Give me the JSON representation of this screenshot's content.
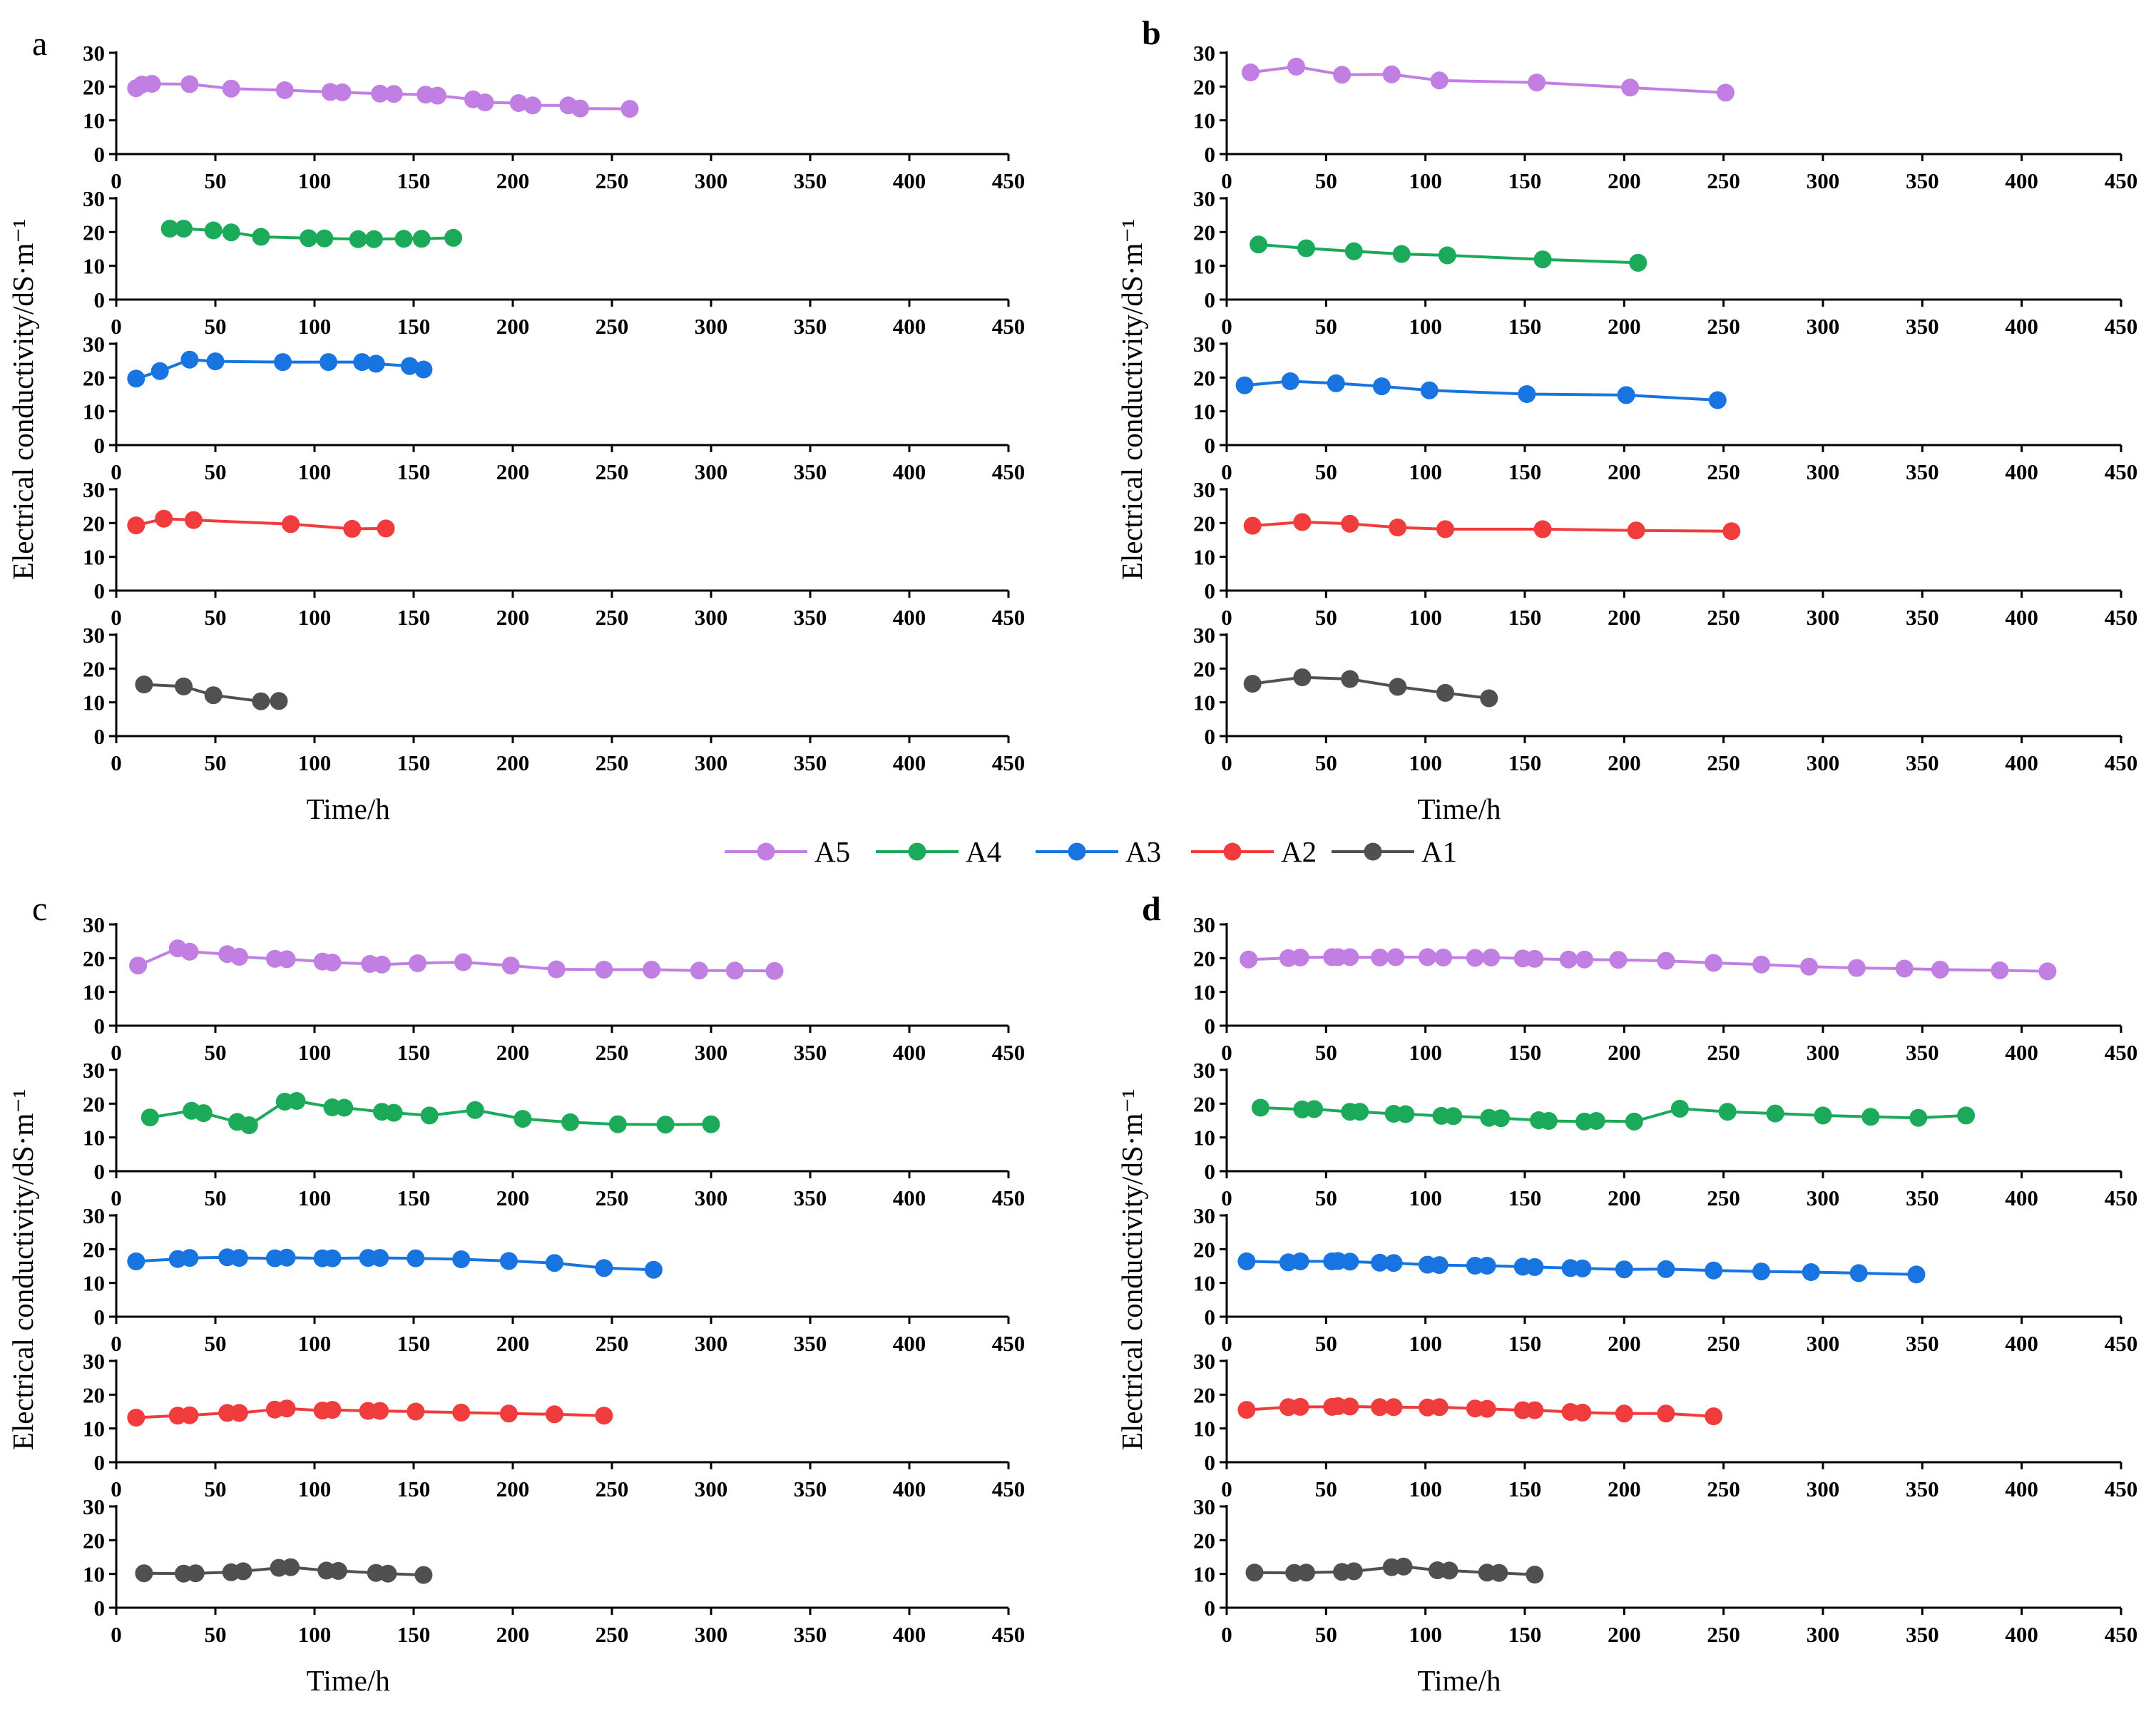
{
  "colors": {
    "A5": "#c27fe3",
    "A4": "#1aaa5a",
    "A3": "#1874e0",
    "A2": "#f03c3c",
    "A1": "#505050"
  },
  "legend": [
    "A5",
    "A4",
    "A3",
    "A2",
    "A1"
  ],
  "chart_data": [
    {
      "type": "line",
      "panel": "a",
      "xlabel": "Time/h",
      "ylabel": "Electrical conductivity/dS·m⁻¹",
      "xlim": [
        0,
        450
      ],
      "ylim": [
        0,
        30
      ],
      "xticks": [
        0,
        50,
        100,
        150,
        200,
        250,
        300,
        350,
        400,
        450
      ],
      "yticks": [
        0,
        10,
        20,
        30
      ],
      "series": [
        {
          "name": "A5",
          "x": [
            10,
            13,
            18,
            37,
            58,
            85,
            108,
            114,
            133,
            140,
            156,
            162,
            180,
            186,
            203,
            210,
            228,
            234,
            259
          ],
          "y": [
            19.5,
            20.6,
            20.8,
            20.7,
            19.4,
            18.9,
            18.4,
            18.3,
            17.9,
            17.8,
            17.6,
            17.3,
            16.2,
            15.3,
            15.1,
            14.4,
            14.4,
            13.5,
            13.4
          ]
        },
        {
          "name": "A4",
          "x": [
            27,
            34,
            49,
            58,
            73,
            97,
            105,
            122,
            130,
            145,
            154,
            170
          ],
          "y": [
            21.0,
            21.0,
            20.5,
            19.9,
            18.6,
            18.2,
            18.1,
            17.9,
            17.9,
            18.0,
            18.0,
            18.3
          ]
        },
        {
          "name": "A3",
          "x": [
            10,
            22,
            37,
            50,
            84,
            107,
            124,
            131,
            148,
            155
          ],
          "y": [
            19.7,
            21.9,
            25.3,
            24.8,
            24.6,
            24.6,
            24.6,
            24.1,
            23.4,
            22.4
          ]
        },
        {
          "name": "A2",
          "x": [
            10,
            24,
            39,
            88,
            119,
            136
          ],
          "y": [
            19.3,
            21.3,
            20.9,
            19.7,
            18.3,
            18.4
          ]
        },
        {
          "name": "A1",
          "x": [
            14,
            34,
            49,
            73,
            82
          ],
          "y": [
            15.3,
            14.7,
            12.1,
            10.3,
            10.4
          ]
        }
      ]
    },
    {
      "type": "line",
      "panel": "b",
      "xlabel": "Time/h",
      "ylabel": "Electrical conductivity/dS·m⁻¹",
      "xlim": [
        0,
        450
      ],
      "ylim": [
        0,
        30
      ],
      "xticks": [
        0,
        50,
        100,
        150,
        200,
        250,
        300,
        350,
        400,
        450
      ],
      "yticks": [
        0,
        10,
        20,
        30
      ],
      "series": [
        {
          "name": "A5",
          "x": [
            12,
            35,
            58,
            83,
            107,
            156,
            203,
            251
          ],
          "y": [
            24.2,
            25.9,
            23.5,
            23.6,
            21.8,
            21.2,
            19.7,
            18.2
          ]
        },
        {
          "name": "A4",
          "x": [
            16,
            40,
            64,
            88,
            111,
            159,
            207
          ],
          "y": [
            16.3,
            15.2,
            14.3,
            13.5,
            13.1,
            11.9,
            10.9
          ]
        },
        {
          "name": "A3",
          "x": [
            9,
            32,
            55,
            78,
            102,
            151,
            201,
            247
          ],
          "y": [
            17.7,
            18.9,
            18.3,
            17.4,
            16.2,
            15.1,
            14.8,
            13.3
          ]
        },
        {
          "name": "A2",
          "x": [
            13,
            38,
            62,
            86,
            110,
            159,
            206,
            254
          ],
          "y": [
            19.2,
            20.3,
            19.8,
            18.7,
            18.2,
            18.2,
            17.8,
            17.6
          ]
        },
        {
          "name": "A1",
          "x": [
            13,
            38,
            62,
            86,
            110,
            132
          ],
          "y": [
            15.5,
            17.4,
            16.9,
            14.6,
            12.8,
            11.2
          ]
        }
      ]
    },
    {
      "type": "line",
      "panel": "c",
      "xlabel": "Time/h",
      "ylabel": "Electrical conductivity/dS·m⁻¹",
      "xlim": [
        0,
        450
      ],
      "ylim": [
        0,
        30
      ],
      "xticks": [
        0,
        50,
        100,
        150,
        200,
        250,
        300,
        350,
        400,
        450
      ],
      "yticks": [
        0,
        10,
        20,
        30
      ],
      "series": [
        {
          "name": "A5",
          "x": [
            11,
            31,
            37,
            56,
            62,
            80,
            86,
            104,
            109,
            128,
            134,
            152,
            175,
            199,
            222,
            246,
            270,
            294,
            312,
            332
          ],
          "y": [
            17.8,
            22.9,
            21.9,
            21.2,
            20.4,
            19.8,
            19.7,
            19.0,
            18.7,
            18.3,
            18.1,
            18.5,
            18.8,
            17.8,
            16.7,
            16.6,
            16.6,
            16.3,
            16.3,
            16.2
          ]
        },
        {
          "name": "A4",
          "x": [
            17,
            38,
            44,
            61,
            67,
            85,
            91,
            109,
            115,
            134,
            140,
            158,
            181,
            205,
            229,
            253,
            277,
            300
          ],
          "y": [
            15.9,
            17.9,
            17.2,
            14.6,
            13.6,
            20.6,
            20.8,
            18.9,
            18.8,
            17.6,
            17.3,
            16.5,
            18.1,
            15.5,
            14.5,
            13.9,
            13.8,
            13.9
          ]
        },
        {
          "name": "A3",
          "x": [
            10,
            31,
            37,
            56,
            62,
            80,
            86,
            104,
            109,
            127,
            133,
            151,
            174,
            198,
            221,
            246,
            271
          ],
          "y": [
            16.4,
            17.1,
            17.4,
            17.6,
            17.4,
            17.3,
            17.5,
            17.3,
            17.3,
            17.4,
            17.4,
            17.3,
            17.0,
            16.5,
            15.9,
            14.4,
            13.9
          ]
        },
        {
          "name": "A2",
          "x": [
            10,
            31,
            37,
            56,
            62,
            80,
            86,
            104,
            109,
            127,
            133,
            151,
            174,
            198,
            221,
            246
          ],
          "y": [
            13.2,
            13.8,
            13.9,
            14.6,
            14.6,
            15.6,
            15.9,
            15.3,
            15.5,
            15.2,
            15.2,
            15.0,
            14.7,
            14.4,
            14.2,
            13.8
          ]
        },
        {
          "name": "A1",
          "x": [
            14,
            34,
            40,
            58,
            64,
            82,
            88,
            106,
            112,
            131,
            137,
            155
          ],
          "y": [
            10.2,
            10.1,
            10.2,
            10.5,
            10.8,
            11.8,
            12.0,
            11.0,
            10.9,
            10.3,
            10.1,
            9.7
          ]
        }
      ]
    },
    {
      "type": "line",
      "panel": "d",
      "xlabel": "Time/h",
      "ylabel": "Electrical conductivity/dS·m⁻¹",
      "xlim": [
        0,
        450
      ],
      "ylim": [
        0,
        30
      ],
      "xticks": [
        0,
        50,
        100,
        150,
        200,
        250,
        300,
        350,
        400,
        450
      ],
      "yticks": [
        0,
        10,
        20,
        30
      ],
      "series": [
        {
          "name": "A5",
          "x": [
            11,
            31,
            37,
            53,
            56,
            62,
            77,
            85,
            101,
            109,
            125,
            133,
            149,
            155,
            172,
            180,
            197,
            221,
            245,
            269,
            293,
            317,
            341,
            359,
            389,
            413
          ],
          "y": [
            19.6,
            20.0,
            20.2,
            20.3,
            20.3,
            20.3,
            20.2,
            20.3,
            20.3,
            20.2,
            20.1,
            20.2,
            19.9,
            19.8,
            19.6,
            19.6,
            19.5,
            19.2,
            18.6,
            18.1,
            17.5,
            17.1,
            16.9,
            16.6,
            16.4,
            16.1
          ]
        },
        {
          "name": "A4",
          "x": [
            17,
            38,
            44,
            62,
            67,
            84,
            90,
            108,
            114,
            132,
            138,
            157,
            162,
            180,
            186,
            205,
            228,
            252,
            276,
            300,
            324,
            348,
            372
          ],
          "y": [
            18.8,
            18.3,
            18.4,
            17.6,
            17.6,
            17.0,
            16.9,
            16.4,
            16.3,
            15.8,
            15.7,
            15.1,
            14.9,
            14.7,
            14.9,
            14.7,
            18.5,
            17.6,
            17.1,
            16.5,
            16.1,
            15.8,
            16.5
          ]
        },
        {
          "name": "A3",
          "x": [
            10,
            31,
            37,
            53,
            56,
            62,
            77,
            84,
            101,
            107,
            125,
            131,
            149,
            155,
            173,
            179,
            200,
            221,
            245,
            269,
            294,
            318,
            347
          ],
          "y": [
            16.4,
            16.1,
            16.4,
            16.4,
            16.5,
            16.3,
            16.0,
            15.9,
            15.4,
            15.3,
            15.1,
            15.1,
            14.8,
            14.7,
            14.4,
            14.3,
            14.0,
            14.1,
            13.7,
            13.4,
            13.2,
            12.9,
            12.5
          ]
        },
        {
          "name": "A2",
          "x": [
            10,
            31,
            37,
            53,
            56,
            62,
            77,
            84,
            101,
            107,
            125,
            131,
            149,
            155,
            173,
            179,
            200,
            221,
            245
          ],
          "y": [
            15.5,
            16.3,
            16.4,
            16.4,
            16.6,
            16.5,
            16.3,
            16.3,
            16.2,
            16.3,
            15.9,
            15.8,
            15.4,
            15.4,
            14.9,
            14.7,
            14.4,
            14.4,
            13.6
          ]
        },
        {
          "name": "A1",
          "x": [
            14,
            34,
            40,
            58,
            64,
            83,
            89,
            106,
            112,
            131,
            137,
            155
          ],
          "y": [
            10.4,
            10.3,
            10.4,
            10.6,
            10.8,
            12.0,
            12.2,
            11.1,
            11.0,
            10.4,
            10.3,
            9.8
          ]
        }
      ]
    }
  ]
}
